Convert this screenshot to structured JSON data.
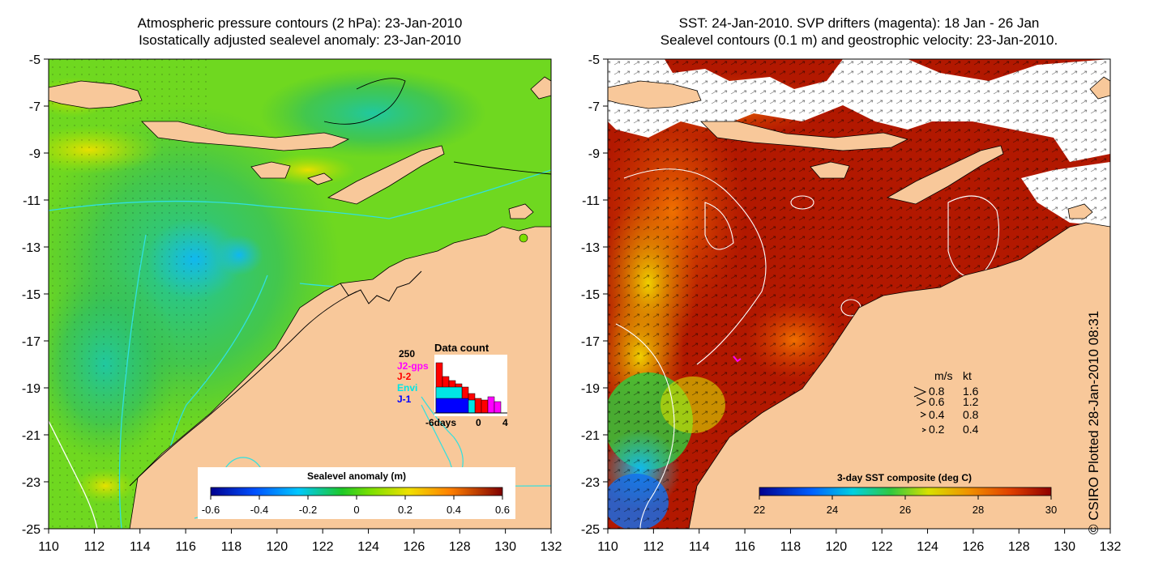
{
  "left_panel": {
    "title_line1": "Atmospheric pressure contours (2 hPa): 23-Jan-2010",
    "title_line2": "Isostatically adjusted sealevel anomaly: 23-Jan-2010",
    "colorbar_label": "Sealevel anomaly (m)",
    "colorbar_ticks": [
      "-0.6",
      "-0.4",
      "-0.2",
      "0",
      "0.2",
      "0.4",
      "0.6"
    ],
    "colors": {
      "low": "#00008f",
      "mid": "#1ec828",
      "zero": "#7de000",
      "high": "#7f0000"
    },
    "inset": {
      "title": "Data count",
      "ymax_label": "250",
      "x_labels": [
        "-6days",
        "0",
        "4"
      ],
      "legend": [
        {
          "name": "J2-gps",
          "color": "#ff00ff"
        },
        {
          "name": "J-2",
          "color": "#ff0000"
        },
        {
          "name": "Envi",
          "color": "#00e5e5"
        },
        {
          "name": "J-1",
          "color": "#0000ff"
        }
      ]
    }
  },
  "right_panel": {
    "title_line1": "SST: 24-Jan-2010. SVP drifters (magenta): 18 Jan - 26 Jan",
    "title_line2": "Sealevel contours (0.1 m) and geostrophic velocity: 23-Jan-2010.",
    "colorbar_label": "3-day SST composite (deg C)",
    "colorbar_ticks": [
      "22",
      "24",
      "26",
      "28",
      "30"
    ],
    "velocity_legend": {
      "header_ms": "m/s",
      "header_kt": "kt",
      "rows": [
        {
          "ms": "0.8",
          "kt": "1.6"
        },
        {
          "ms": "0.6",
          "kt": "1.2"
        },
        {
          "ms": "0.4",
          "kt": "0.8"
        },
        {
          "ms": "0.2",
          "kt": "0.4"
        }
      ]
    }
  },
  "axes": {
    "y_ticks": [
      "-5",
      "-7",
      "-9",
      "-11",
      "-13",
      "-15",
      "-17",
      "-19",
      "-21",
      "-23",
      "-25"
    ],
    "x_ticks": [
      "110",
      "112",
      "114",
      "116",
      "118",
      "120",
      "122",
      "124",
      "126",
      "128",
      "130",
      "132"
    ]
  },
  "credit": "© CSIRO Plotted 28-Jan-2010 08:31",
  "colors": {
    "land": "#f8c89a",
    "sea_warm": "#b21800",
    "contour_cyan": "#30e0e0"
  }
}
